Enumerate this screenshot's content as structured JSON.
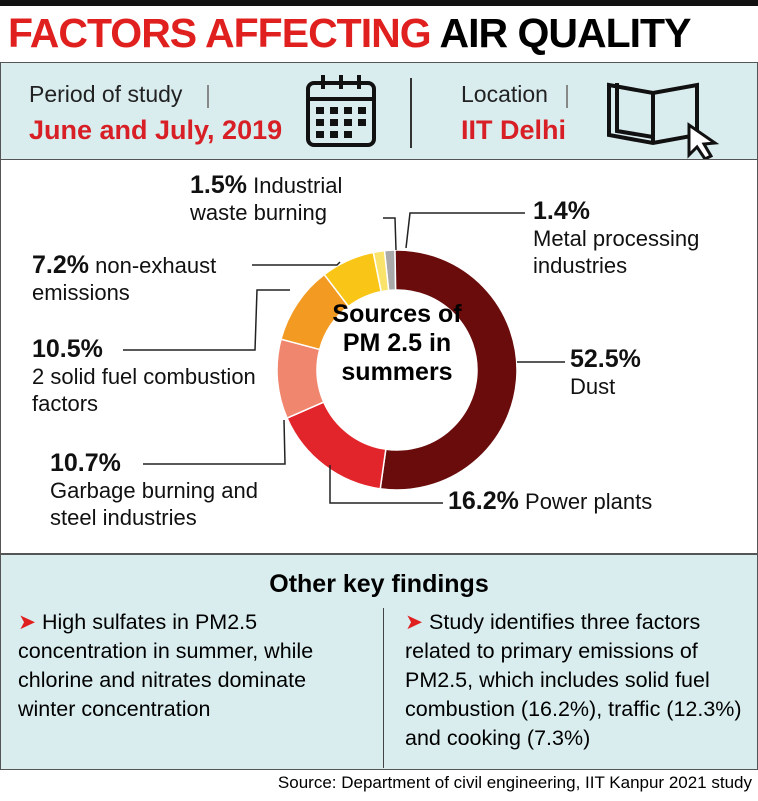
{
  "header": {
    "title_highlight": "FACTORS AFFECTING",
    "title_rest": "AIR QUALITY"
  },
  "info": {
    "period_label": "Period of study",
    "period_value": "June and July, 2019",
    "location_label": "Location",
    "location_value": "IIT Delhi"
  },
  "chart_data": {
    "type": "pie",
    "center_label": "Sources of PM 2.5 in summers",
    "categories": [
      "Metal processing industries",
      "Dust",
      "Power plants",
      "Garbage burning and steel industries",
      "2 solid fuel combustion factors",
      "non-exhaust emissions",
      "Industrial waste burning"
    ],
    "values": [
      1.4,
      52.5,
      16.2,
      10.7,
      10.5,
      7.2,
      1.5
    ],
    "value_labels": [
      "1.4%",
      "52.5%",
      "16.2%",
      "10.7%",
      "10.5%",
      "7.2%",
      "1.5%"
    ],
    "colors": [
      "#a9a9a9",
      "#6a0c0c",
      "#e2252a",
      "#f0866e",
      "#f39a22",
      "#f9c516",
      "#f9e36b"
    ]
  },
  "findings": {
    "title": "Other key findings",
    "items": [
      "High sulfates in PM2.5 concentration in summer, while chlorine and nitrates dominate winter concentration",
      "Study identifies three factors related to primary emissions of PM2.5, which includes solid fuel combustion (16.2%), traffic (12.3%) and cooking (7.3%)"
    ]
  },
  "source": "Source: Department of civil engineering, IIT Kanpur 2021 study"
}
